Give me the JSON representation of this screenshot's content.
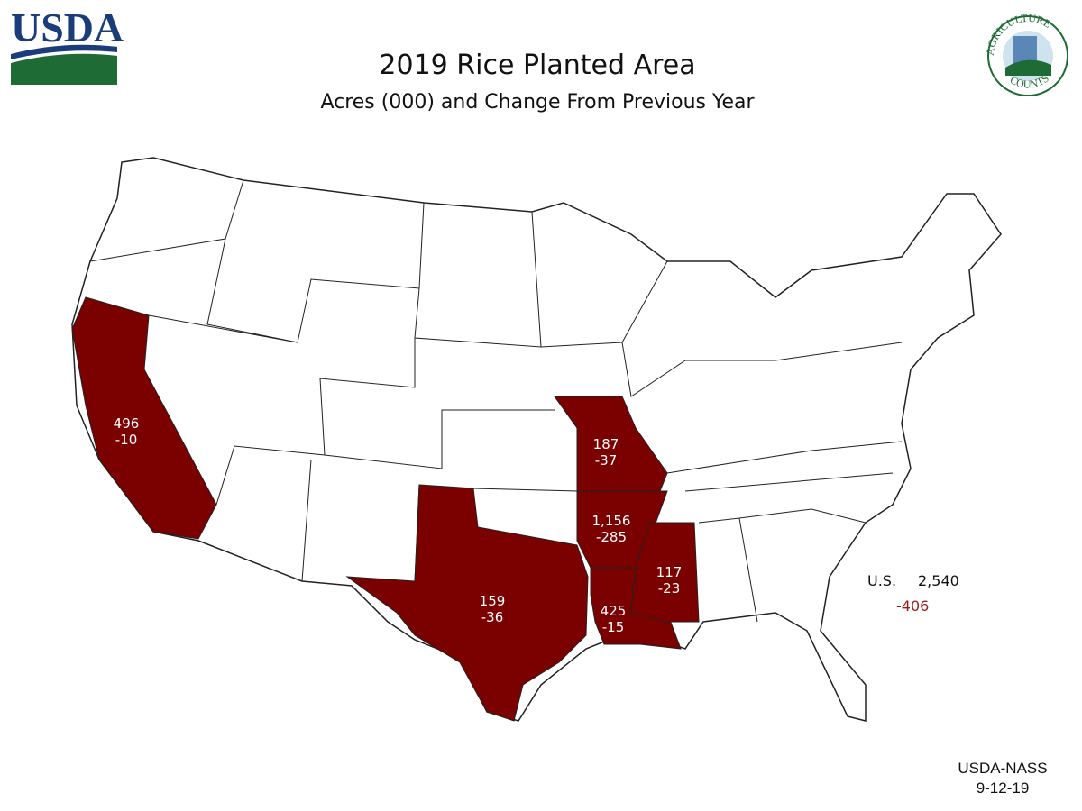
{
  "header": {
    "logo": "USDA",
    "title": "2019 Rice Planted Area",
    "subtitle": "Acres (000) and Change From Previous Year",
    "badge_top": "AGRICULTURE",
    "badge_bottom": "COUNTS"
  },
  "states": [
    {
      "acres": "496",
      "change": "-10"
    },
    {
      "acres": "187",
      "change": "-37"
    },
    {
      "acres": "1,156",
      "change": "-285"
    },
    {
      "acres": "159",
      "change": "-36"
    },
    {
      "acres": "425",
      "change": "-15"
    },
    {
      "acres": "117",
      "change": "-23"
    }
  ],
  "total": {
    "label": "U.S.",
    "acres": "2,540",
    "change": "-406"
  },
  "footer": {
    "source": "USDA-NASS",
    "date": "9-12-19"
  }
}
